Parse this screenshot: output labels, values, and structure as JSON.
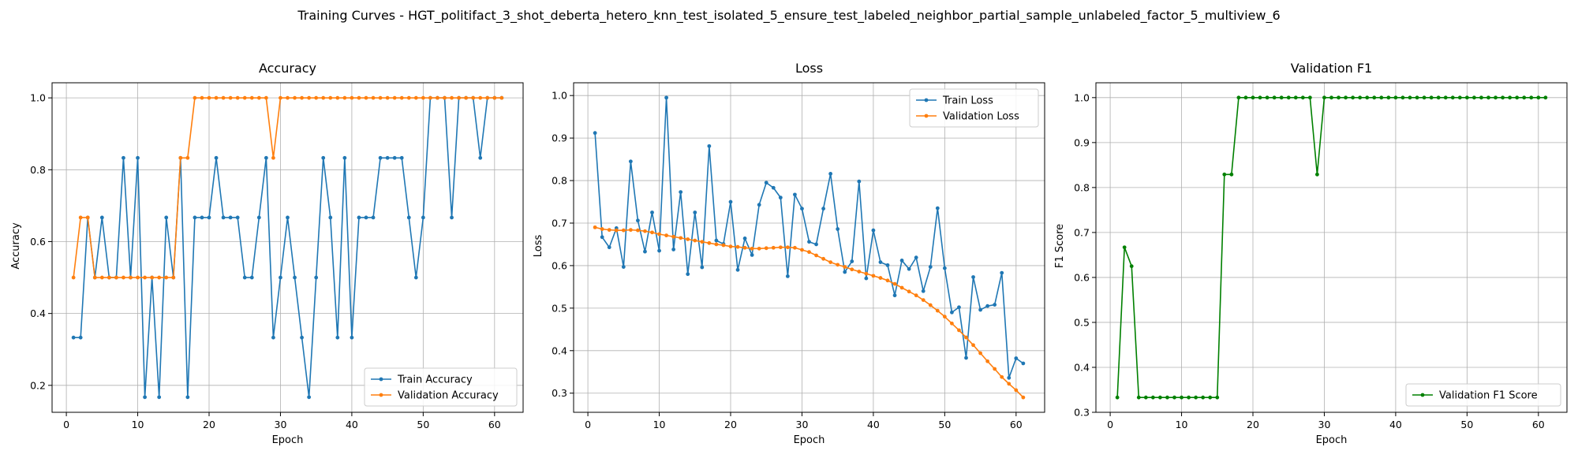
{
  "figure_title": "Training Curves - HGT_politifact_3_shot_deberta_hetero_knn_test_isolated_5_ensure_test_labeled_neighbor_partial_sample_unlabeled_factor_5_multiview_6",
  "colors": {
    "train": "#1f77b4",
    "validation": "#ff7f0e",
    "f1": "#008000",
    "grid": "#b0b0b0"
  },
  "chart_data": [
    {
      "type": "line",
      "title": "Accuracy",
      "xlabel": "Epoch",
      "ylabel": "Accuracy",
      "xlim": [
        -2.0,
        64.0
      ],
      "ylim": [
        0.125,
        1.042
      ],
      "xticks": [
        0,
        10,
        20,
        30,
        40,
        50,
        60
      ],
      "yticks": [
        0.2,
        0.4,
        0.6,
        0.8,
        1.0
      ],
      "ytick_labels": [
        "0.2",
        "0.4",
        "0.6",
        "0.8",
        "1.0"
      ],
      "grid": true,
      "legend_position": "lower-right",
      "x": [
        1,
        2,
        3,
        4,
        5,
        6,
        7,
        8,
        9,
        10,
        11,
        12,
        13,
        14,
        15,
        16,
        17,
        18,
        19,
        20,
        21,
        22,
        23,
        24,
        25,
        26,
        27,
        28,
        29,
        30,
        31,
        32,
        33,
        34,
        35,
        36,
        37,
        38,
        39,
        40,
        41,
        42,
        43,
        44,
        45,
        46,
        47,
        48,
        49,
        50,
        51,
        52,
        53,
        54,
        55,
        56,
        57,
        58,
        59,
        60,
        61
      ],
      "series": [
        {
          "name": "Train Accuracy",
          "color": "#1f77b4",
          "values": [
            0.333,
            0.333,
            0.667,
            0.5,
            0.667,
            0.5,
            0.5,
            0.833,
            0.5,
            0.833,
            0.167,
            0.5,
            0.167,
            0.667,
            0.5,
            0.833,
            0.167,
            0.667,
            0.667,
            0.667,
            0.833,
            0.667,
            0.667,
            0.667,
            0.5,
            0.5,
            0.667,
            0.833,
            0.333,
            0.5,
            0.667,
            0.5,
            0.333,
            0.167,
            0.5,
            0.833,
            0.667,
            0.333,
            0.833,
            0.333,
            0.667,
            0.667,
            0.667,
            0.833,
            0.833,
            0.833,
            0.833,
            0.667,
            0.5,
            0.667,
            1.0,
            1.0,
            1.0,
            0.667,
            1.0,
            1.0,
            1.0,
            0.833,
            1.0,
            1.0,
            1.0
          ]
        },
        {
          "name": "Validation Accuracy",
          "color": "#ff7f0e",
          "values": [
            0.5,
            0.667,
            0.667,
            0.5,
            0.5,
            0.5,
            0.5,
            0.5,
            0.5,
            0.5,
            0.5,
            0.5,
            0.5,
            0.5,
            0.5,
            0.833,
            0.833,
            1.0,
            1.0,
            1.0,
            1.0,
            1.0,
            1.0,
            1.0,
            1.0,
            1.0,
            1.0,
            1.0,
            0.833,
            1.0,
            1.0,
            1.0,
            1.0,
            1.0,
            1.0,
            1.0,
            1.0,
            1.0,
            1.0,
            1.0,
            1.0,
            1.0,
            1.0,
            1.0,
            1.0,
            1.0,
            1.0,
            1.0,
            1.0,
            1.0,
            1.0,
            1.0,
            1.0,
            1.0,
            1.0,
            1.0,
            1.0,
            1.0,
            1.0,
            1.0,
            1.0
          ]
        }
      ]
    },
    {
      "type": "line",
      "title": "Loss",
      "xlabel": "Epoch",
      "ylabel": "Loss",
      "xlim": [
        -2.0,
        64.0
      ],
      "ylim": [
        0.255,
        1.03
      ],
      "xticks": [
        0,
        10,
        20,
        30,
        40,
        50,
        60
      ],
      "yticks": [
        0.3,
        0.4,
        0.5,
        0.6,
        0.7,
        0.8,
        0.9,
        1.0
      ],
      "ytick_labels": [
        "0.3",
        "0.4",
        "0.5",
        "0.6",
        "0.7",
        "0.8",
        "0.9",
        "1.0"
      ],
      "grid": true,
      "legend_position": "upper-right",
      "x": [
        1,
        2,
        3,
        4,
        5,
        6,
        7,
        8,
        9,
        10,
        11,
        12,
        13,
        14,
        15,
        16,
        17,
        18,
        19,
        20,
        21,
        22,
        23,
        24,
        25,
        26,
        27,
        28,
        29,
        30,
        31,
        32,
        33,
        34,
        35,
        36,
        37,
        38,
        39,
        40,
        41,
        42,
        43,
        44,
        45,
        46,
        47,
        48,
        49,
        50,
        51,
        52,
        53,
        54,
        55,
        56,
        57,
        58,
        59,
        60,
        61
      ],
      "series": [
        {
          "name": "Train Loss",
          "color": "#1f77b4",
          "values": [
            0.912,
            0.667,
            0.643,
            0.688,
            0.597,
            0.845,
            0.706,
            0.633,
            0.725,
            0.635,
            0.995,
            0.638,
            0.773,
            0.58,
            0.725,
            0.596,
            0.881,
            0.659,
            0.651,
            0.75,
            0.59,
            0.664,
            0.625,
            0.743,
            0.795,
            0.783,
            0.76,
            0.575,
            0.767,
            0.734,
            0.656,
            0.65,
            0.734,
            0.816,
            0.686,
            0.585,
            0.61,
            0.798,
            0.57,
            0.683,
            0.608,
            0.601,
            0.53,
            0.612,
            0.592,
            0.619,
            0.54,
            0.597,
            0.735,
            0.594,
            0.49,
            0.502,
            0.383,
            0.573,
            0.496,
            0.505,
            0.508,
            0.583,
            0.336,
            0.382,
            0.37
          ]
        },
        {
          "name": "Validation Loss",
          "color": "#ff7f0e",
          "values": [
            0.69,
            0.686,
            0.684,
            0.683,
            0.683,
            0.684,
            0.683,
            0.681,
            0.678,
            0.674,
            0.671,
            0.668,
            0.665,
            0.662,
            0.659,
            0.656,
            0.653,
            0.65,
            0.648,
            0.645,
            0.644,
            0.642,
            0.64,
            0.64,
            0.641,
            0.642,
            0.643,
            0.643,
            0.642,
            0.637,
            0.632,
            0.624,
            0.616,
            0.608,
            0.602,
            0.597,
            0.591,
            0.586,
            0.581,
            0.576,
            0.571,
            0.565,
            0.557,
            0.548,
            0.539,
            0.53,
            0.519,
            0.507,
            0.494,
            0.48,
            0.464,
            0.448,
            0.431,
            0.413,
            0.394,
            0.375,
            0.357,
            0.338,
            0.322,
            0.307,
            0.29
          ]
        }
      ]
    },
    {
      "type": "line",
      "title": "Validation F1",
      "xlabel": "Epoch",
      "ylabel": "F1 Score",
      "xlim": [
        -2.0,
        64.0
      ],
      "ylim": [
        0.3,
        1.033
      ],
      "xticks": [
        0,
        10,
        20,
        30,
        40,
        50,
        60
      ],
      "yticks": [
        0.3,
        0.4,
        0.5,
        0.6,
        0.7,
        0.8,
        0.9,
        1.0
      ],
      "ytick_labels": [
        "0.3",
        "0.4",
        "0.5",
        "0.6",
        "0.7",
        "0.8",
        "0.9",
        "1.0"
      ],
      "grid": true,
      "legend_position": "lower-right",
      "x": [
        1,
        2,
        3,
        4,
        5,
        6,
        7,
        8,
        9,
        10,
        11,
        12,
        13,
        14,
        15,
        16,
        17,
        18,
        19,
        20,
        21,
        22,
        23,
        24,
        25,
        26,
        27,
        28,
        29,
        30,
        31,
        32,
        33,
        34,
        35,
        36,
        37,
        38,
        39,
        40,
        41,
        42,
        43,
        44,
        45,
        46,
        47,
        48,
        49,
        50,
        51,
        52,
        53,
        54,
        55,
        56,
        57,
        58,
        59,
        60,
        61
      ],
      "series": [
        {
          "name": "Validation F1 Score",
          "color": "#008000",
          "values": [
            0.333,
            0.667,
            0.625,
            0.333,
            0.333,
            0.333,
            0.333,
            0.333,
            0.333,
            0.333,
            0.333,
            0.333,
            0.333,
            0.333,
            0.333,
            0.829,
            0.829,
            1.0,
            1.0,
            1.0,
            1.0,
            1.0,
            1.0,
            1.0,
            1.0,
            1.0,
            1.0,
            1.0,
            0.829,
            1.0,
            1.0,
            1.0,
            1.0,
            1.0,
            1.0,
            1.0,
            1.0,
            1.0,
            1.0,
            1.0,
            1.0,
            1.0,
            1.0,
            1.0,
            1.0,
            1.0,
            1.0,
            1.0,
            1.0,
            1.0,
            1.0,
            1.0,
            1.0,
            1.0,
            1.0,
            1.0,
            1.0,
            1.0,
            1.0,
            1.0,
            1.0
          ]
        }
      ]
    }
  ]
}
